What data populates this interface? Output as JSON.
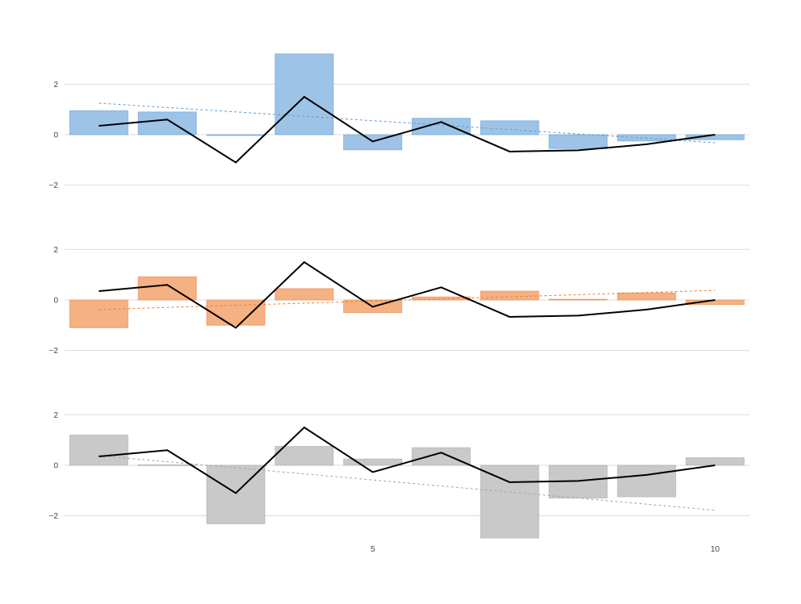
{
  "chart_data": {
    "type": "bar",
    "grid": true,
    "x": [
      1,
      2,
      3,
      4,
      5,
      6,
      7,
      8,
      9,
      10
    ],
    "xticks": [
      5,
      10
    ],
    "yticks": [
      -2,
      0,
      2
    ],
    "panels": [
      {
        "ylim": [
          -2.8,
          3.9
        ],
        "bar_color": "#9DC3E6",
        "trend_color": "#5B9BD5",
        "bars": [
          0.95,
          0.9,
          0.0,
          3.2,
          -0.6,
          0.65,
          0.55,
          -0.55,
          -0.25,
          -0.2
        ],
        "trend": [
          1.25,
          -0.32
        ]
      },
      {
        "ylim": [
          -2.8,
          3.9
        ],
        "bar_color": "#F4B183",
        "trend_color": "#ED7D31",
        "bars": [
          -1.1,
          0.92,
          -1.0,
          0.45,
          -0.5,
          0.12,
          0.35,
          0.03,
          0.28,
          -0.18
        ],
        "trend": [
          -0.38,
          0.38
        ]
      },
      {
        "ylim": [
          -2.8,
          3.9
        ],
        "bar_color": "#C9C9C9",
        "trend_color": "#A5A5A5",
        "bars": [
          1.2,
          0.02,
          -2.32,
          0.75,
          0.25,
          0.7,
          -2.88,
          -1.3,
          -1.25,
          0.3
        ],
        "trend": [
          0.38,
          -1.78
        ]
      }
    ],
    "line": {
      "color": "#000000",
      "values": [
        0.35,
        0.6,
        -1.1,
        1.5,
        -0.27,
        0.5,
        -0.67,
        -0.62,
        -0.38,
        0.0
      ]
    }
  }
}
